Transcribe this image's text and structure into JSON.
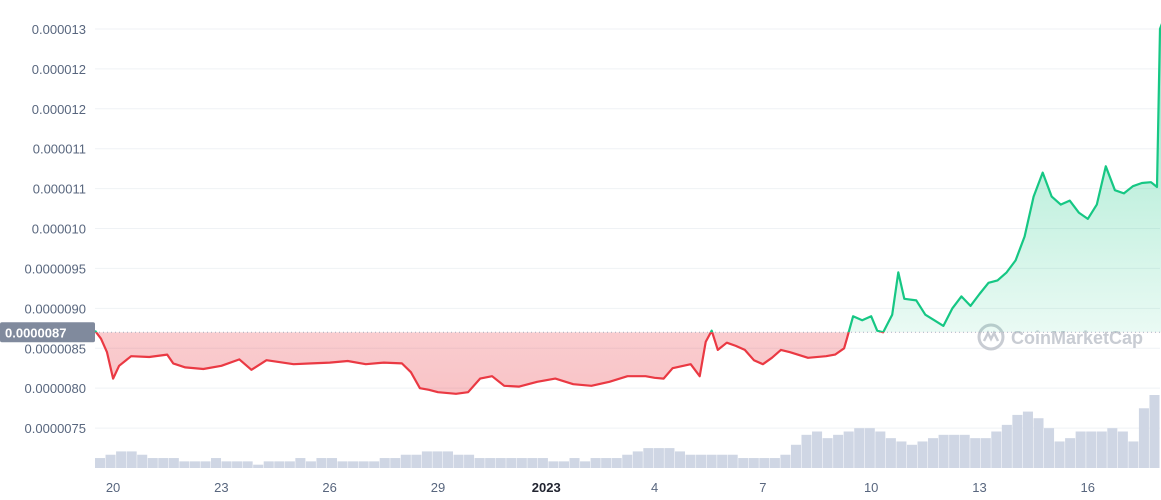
{
  "chart_data": {
    "type": "line",
    "title": "",
    "xlabel": "",
    "ylabel": "",
    "y_tick_labels": [
      "0.0000075",
      "0.0000080",
      "0.0000085",
      "0.0000090",
      "0.0000095",
      "0.000010",
      "0.000011",
      "0.000011",
      "0.000012",
      "0.000012",
      "0.000013"
    ],
    "y_tick_values": [
      7.5e-06,
      8e-06,
      8.5e-06,
      9e-06,
      9.5e-06,
      1e-05,
      1.05e-05,
      1.1e-05,
      1.15e-05,
      1.2e-05,
      1.25e-05
    ],
    "ylim": [
      7e-06,
      1.28e-05
    ],
    "x_range": [
      "2022-12-19T12:00",
      "2023-01-18T00:00"
    ],
    "x_ticks": [
      {
        "label": "20",
        "date": "2022-12-20"
      },
      {
        "label": "23",
        "date": "2022-12-23"
      },
      {
        "label": "26",
        "date": "2022-12-26"
      },
      {
        "label": "29",
        "date": "2022-12-29"
      },
      {
        "label": "2023",
        "date": "2023-01-01",
        "bold": true
      },
      {
        "label": "4",
        "date": "2023-01-04"
      },
      {
        "label": "7",
        "date": "2023-01-07"
      },
      {
        "label": "10",
        "date": "2023-01-10"
      },
      {
        "label": "13",
        "date": "2023-01-13"
      },
      {
        "label": "16",
        "date": "2023-01-16"
      }
    ],
    "reference_value": 8.7e-06,
    "reference_label": "0.0000087",
    "grid": true,
    "colors": {
      "above": "#16c784",
      "below": "#ea3943",
      "volume": "#cfd6e4"
    },
    "series": [
      {
        "points": [
          [
            "2022-12-19T12:00",
            8.72e-06
          ],
          [
            "2022-12-19T16:00",
            8.62e-06
          ],
          [
            "2022-12-19T20:00",
            8.45e-06
          ],
          [
            "2022-12-20T00:00",
            8.12e-06
          ],
          [
            "2022-12-20T04:00",
            8.28e-06
          ],
          [
            "2022-12-20T12:00",
            8.4e-06
          ],
          [
            "2022-12-21T00:00",
            8.39e-06
          ],
          [
            "2022-12-21T12:00",
            8.42e-06
          ],
          [
            "2022-12-21T16:00",
            8.31e-06
          ],
          [
            "2022-12-22T00:00",
            8.26e-06
          ],
          [
            "2022-12-22T12:00",
            8.24e-06
          ],
          [
            "2022-12-23T00:00",
            8.28e-06
          ],
          [
            "2022-12-23T12:00",
            8.36e-06
          ],
          [
            "2022-12-23T20:00",
            8.23e-06
          ],
          [
            "2022-12-24T06:00",
            8.35e-06
          ],
          [
            "2022-12-25T00:00",
            8.3e-06
          ],
          [
            "2022-12-25T12:00",
            8.31e-06
          ],
          [
            "2022-12-26T00:00",
            8.32e-06
          ],
          [
            "2022-12-26T12:00",
            8.34e-06
          ],
          [
            "2022-12-27T00:00",
            8.3e-06
          ],
          [
            "2022-12-27T12:00",
            8.32e-06
          ],
          [
            "2022-12-28T00:00",
            8.31e-06
          ],
          [
            "2022-12-28T06:00",
            8.2e-06
          ],
          [
            "2022-12-28T12:00",
            8e-06
          ],
          [
            "2022-12-28T18:00",
            7.98e-06
          ],
          [
            "2022-12-29T00:00",
            7.95e-06
          ],
          [
            "2022-12-29T12:00",
            7.93e-06
          ],
          [
            "2022-12-29T20:00",
            7.95e-06
          ],
          [
            "2022-12-30T04:00",
            8.12e-06
          ],
          [
            "2022-12-30T12:00",
            8.15e-06
          ],
          [
            "2022-12-30T20:00",
            8.03e-06
          ],
          [
            "2022-12-31T06:00",
            8.02e-06
          ],
          [
            "2022-12-31T18:00",
            8.08e-06
          ],
          [
            "2023-01-01T06:00",
            8.12e-06
          ],
          [
            "2023-01-01T18:00",
            8.05e-06
          ],
          [
            "2023-01-02T06:00",
            8.03e-06
          ],
          [
            "2023-01-02T18:00",
            8.08e-06
          ],
          [
            "2023-01-03T06:00",
            8.15e-06
          ],
          [
            "2023-01-03T18:00",
            8.15e-06
          ],
          [
            "2023-01-04T00:00",
            8.13e-06
          ],
          [
            "2023-01-04T06:00",
            8.12e-06
          ],
          [
            "2023-01-04T12:00",
            8.25e-06
          ],
          [
            "2023-01-05T00:00",
            8.3e-06
          ],
          [
            "2023-01-05T06:00",
            8.15e-06
          ],
          [
            "2023-01-05T10:00",
            8.58e-06
          ],
          [
            "2023-01-05T14:00",
            8.72e-06
          ],
          [
            "2023-01-05T18:00",
            8.48e-06
          ],
          [
            "2023-01-06T00:00",
            8.57e-06
          ],
          [
            "2023-01-06T06:00",
            8.53e-06
          ],
          [
            "2023-01-06T12:00",
            8.48e-06
          ],
          [
            "2023-01-06T18:00",
            8.35e-06
          ],
          [
            "2023-01-07T00:00",
            8.3e-06
          ],
          [
            "2023-01-07T06:00",
            8.38e-06
          ],
          [
            "2023-01-07T12:00",
            8.48e-06
          ],
          [
            "2023-01-07T18:00",
            8.45e-06
          ],
          [
            "2023-01-08T06:00",
            8.38e-06
          ],
          [
            "2023-01-08T18:00",
            8.4e-06
          ],
          [
            "2023-01-09T00:00",
            8.42e-06
          ],
          [
            "2023-01-09T06:00",
            8.5e-06
          ],
          [
            "2023-01-09T08:00",
            8.63e-06
          ],
          [
            "2023-01-09T12:00",
            8.9e-06
          ],
          [
            "2023-01-09T18:00",
            8.85e-06
          ],
          [
            "2023-01-10T00:00",
            8.9e-06
          ],
          [
            "2023-01-10T04:00",
            8.72e-06
          ],
          [
            "2023-01-10T08:00",
            8.7e-06
          ],
          [
            "2023-01-10T14:00",
            8.92e-06
          ],
          [
            "2023-01-10T18:00",
            9.45e-06
          ],
          [
            "2023-01-10T22:00",
            9.12e-06
          ],
          [
            "2023-01-11T06:00",
            9.1e-06
          ],
          [
            "2023-01-11T12:00",
            8.92e-06
          ],
          [
            "2023-01-11T18:00",
            8.85e-06
          ],
          [
            "2023-01-12T00:00",
            8.78e-06
          ],
          [
            "2023-01-12T06:00",
            9e-06
          ],
          [
            "2023-01-12T12:00",
            9.15e-06
          ],
          [
            "2023-01-12T18:00",
            9.03e-06
          ],
          [
            "2023-01-13T00:00",
            9.18e-06
          ],
          [
            "2023-01-13T06:00",
            9.32e-06
          ],
          [
            "2023-01-13T12:00",
            9.35e-06
          ],
          [
            "2023-01-13T18:00",
            9.45e-06
          ],
          [
            "2023-01-14T00:00",
            9.6e-06
          ],
          [
            "2023-01-14T06:00",
            9.9e-06
          ],
          [
            "2023-01-14T12:00",
            1.04e-05
          ],
          [
            "2023-01-14T18:00",
            1.07e-05
          ],
          [
            "2023-01-15T00:00",
            1.04e-05
          ],
          [
            "2023-01-15T06:00",
            1.03e-05
          ],
          [
            "2023-01-15T12:00",
            1.035e-05
          ],
          [
            "2023-01-15T18:00",
            1.02e-05
          ],
          [
            "2023-01-16T00:00",
            1.012e-05
          ],
          [
            "2023-01-16T06:00",
            1.03e-05
          ],
          [
            "2023-01-16T12:00",
            1.078e-05
          ],
          [
            "2023-01-16T18:00",
            1.048e-05
          ],
          [
            "2023-01-17T00:00",
            1.044e-05
          ],
          [
            "2023-01-17T06:00",
            1.053e-05
          ],
          [
            "2023-01-17T12:00",
            1.057e-05
          ],
          [
            "2023-01-17T18:00",
            1.058e-05
          ],
          [
            "2023-01-17T22:00",
            1.052e-05
          ],
          [
            "2023-01-18T00:00",
            1.25e-05
          ],
          [
            "2023-01-18T02:00",
            1.26e-05
          ],
          [
            "2023-01-18T04:00",
            1.23e-05
          ]
        ]
      }
    ],
    "volume": [
      3,
      4,
      5,
      5,
      4,
      3,
      3,
      3,
      2,
      2,
      2,
      3,
      2,
      2,
      2,
      1,
      2,
      2,
      2,
      3,
      2,
      3,
      3,
      2,
      2,
      2,
      2,
      3,
      3,
      4,
      4,
      5,
      5,
      5,
      4,
      4,
      3,
      3,
      3,
      3,
      3,
      3,
      3,
      2,
      2,
      3,
      2,
      3,
      3,
      3,
      4,
      5,
      6,
      6,
      6,
      5,
      4,
      4,
      4,
      4,
      4,
      3,
      3,
      3,
      3,
      4,
      7,
      10,
      11,
      9,
      10,
      11,
      12,
      12,
      11,
      9,
      8,
      7,
      8,
      9,
      10,
      10,
      10,
      9,
      9,
      11,
      13,
      16,
      17,
      15,
      12,
      8,
      9,
      11,
      11,
      11,
      12,
      11,
      8,
      18,
      22
    ]
  },
  "watermark": {
    "text": "CoinMarketCap",
    "icon": "coinmarketcap-logo-icon"
  }
}
